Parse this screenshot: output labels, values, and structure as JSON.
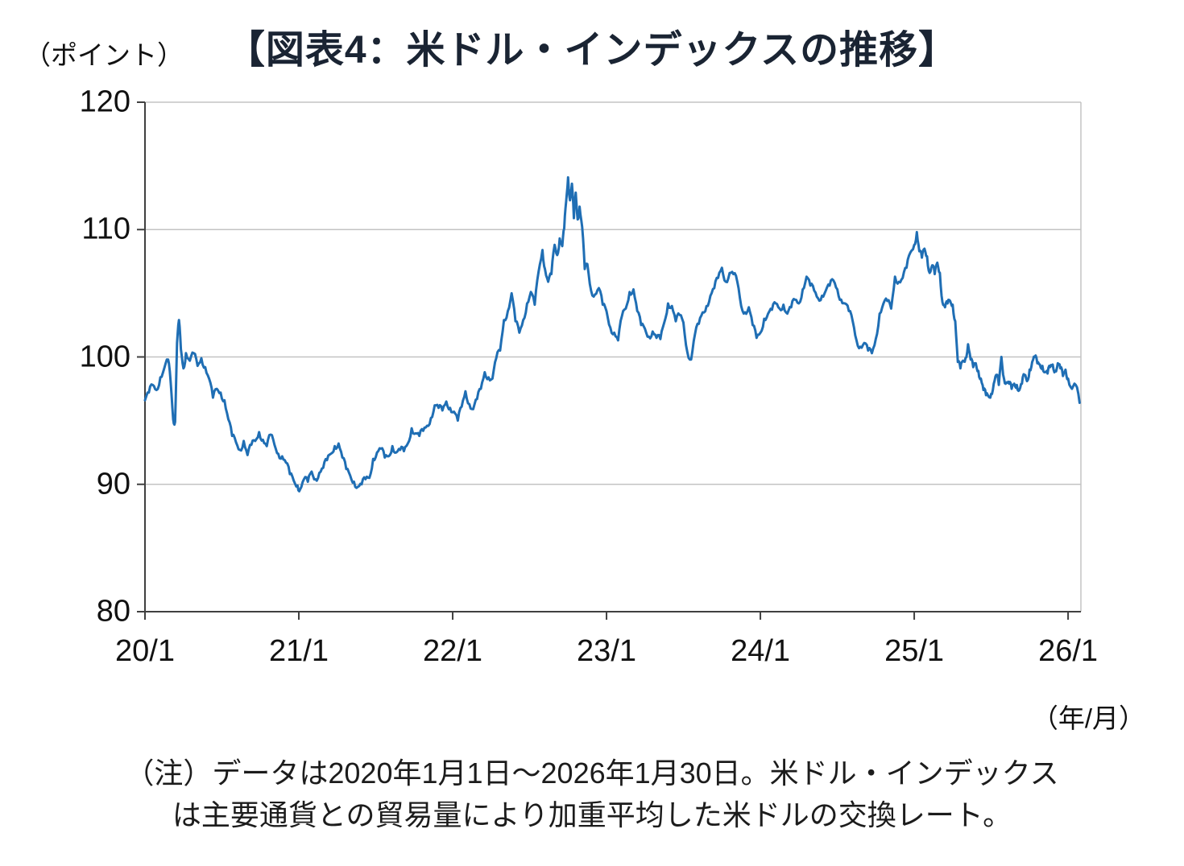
{
  "chart_data": {
    "type": "line",
    "title": "【図表4：米ドル・インデックスの推移】",
    "y_unit_label": "（ポイント）",
    "x_unit_label": "（年/月）",
    "ylim": [
      80,
      120
    ],
    "yticks": [
      80,
      90,
      100,
      110,
      120
    ],
    "xlim_months": [
      0,
      73
    ],
    "xticks": [
      {
        "m": 0,
        "label": "20/1"
      },
      {
        "m": 12,
        "label": "21/1"
      },
      {
        "m": 24,
        "label": "22/1"
      },
      {
        "m": 36,
        "label": "23/1"
      },
      {
        "m": 48,
        "label": "24/1"
      },
      {
        "m": 60,
        "label": "25/1"
      },
      {
        "m": 72,
        "label": "26/1"
      }
    ],
    "grid": "horizontal",
    "legend": "none",
    "colors": {
      "line": "#1f6eb4",
      "grid": "#c3c3c3",
      "axis": "#404040",
      "title": "#1a2433"
    },
    "series": [
      {
        "name": "米ドル・インデックス",
        "color": "#1f6eb4",
        "points": [
          [
            0,
            96.6
          ],
          [
            0.3,
            97.2
          ],
          [
            0.6,
            97.8
          ],
          [
            0.9,
            97.4
          ],
          [
            1.2,
            98.4
          ],
          [
            1.5,
            99.1
          ],
          [
            1.8,
            99.8
          ],
          [
            2.0,
            98.1
          ],
          [
            2.2,
            95.1
          ],
          [
            2.35,
            94.9
          ],
          [
            2.5,
            101.1
          ],
          [
            2.65,
            102.9
          ],
          [
            2.8,
            100.6
          ],
          [
            3.0,
            99.1
          ],
          [
            3.2,
            100.3
          ],
          [
            3.5,
            99.7
          ],
          [
            3.8,
            100.3
          ],
          [
            4.1,
            99.3
          ],
          [
            4.4,
            99.9
          ],
          [
            4.7,
            99.2
          ],
          [
            5.0,
            98.3
          ],
          [
            5.3,
            96.8
          ],
          [
            5.6,
            97.5
          ],
          [
            5.9,
            97.2
          ],
          [
            6.2,
            96.6
          ],
          [
            6.5,
            95.1
          ],
          [
            6.8,
            93.8
          ],
          [
            7.1,
            93.3
          ],
          [
            7.4,
            92.7
          ],
          [
            7.7,
            93.4
          ],
          [
            8.0,
            92.3
          ],
          [
            8.3,
            93.1
          ],
          [
            8.6,
            93.4
          ],
          [
            8.9,
            94.1
          ],
          [
            9.2,
            93.5
          ],
          [
            9.5,
            93.0
          ],
          [
            9.8,
            93.9
          ],
          [
            10.1,
            93.1
          ],
          [
            10.4,
            92.4
          ],
          [
            10.7,
            92.2
          ],
          [
            11.0,
            91.7
          ],
          [
            11.3,
            90.8
          ],
          [
            11.6,
            90.3
          ],
          [
            11.9,
            89.9
          ],
          [
            12.1,
            89.6
          ],
          [
            12.4,
            90.4
          ],
          [
            12.7,
            90.2
          ],
          [
            13.0,
            91.0
          ],
          [
            13.3,
            90.4
          ],
          [
            13.6,
            90.9
          ],
          [
            13.9,
            91.3
          ],
          [
            14.2,
            91.9
          ],
          [
            14.5,
            92.4
          ],
          [
            14.8,
            93.0
          ],
          [
            15.1,
            93.2
          ],
          [
            15.4,
            92.1
          ],
          [
            15.7,
            91.2
          ],
          [
            16.0,
            90.7
          ],
          [
            16.3,
            90.2
          ],
          [
            16.6,
            89.8
          ],
          [
            16.9,
            90.0
          ],
          [
            17.2,
            90.4
          ],
          [
            17.5,
            90.5
          ],
          [
            17.8,
            92.0
          ],
          [
            18.1,
            92.5
          ],
          [
            18.4,
            92.8
          ],
          [
            18.7,
            92.1
          ],
          [
            19.0,
            92.2
          ],
          [
            19.3,
            93.0
          ],
          [
            19.6,
            92.5
          ],
          [
            19.9,
            92.7
          ],
          [
            20.2,
            92.6
          ],
          [
            20.5,
            93.2
          ],
          [
            20.8,
            94.4
          ],
          [
            21.1,
            94.0
          ],
          [
            21.4,
            93.8
          ],
          [
            21.7,
            94.2
          ],
          [
            22.0,
            94.6
          ],
          [
            22.3,
            95.2
          ],
          [
            22.6,
            96.2
          ],
          [
            22.9,
            96.0
          ],
          [
            23.2,
            95.8
          ],
          [
            23.5,
            96.5
          ],
          [
            23.8,
            96.0
          ],
          [
            24.1,
            95.7
          ],
          [
            24.4,
            95.0
          ],
          [
            24.7,
            96.1
          ],
          [
            25.0,
            97.3
          ],
          [
            25.3,
            96.3
          ],
          [
            25.6,
            95.9
          ],
          [
            25.9,
            96.7
          ],
          [
            26.2,
            97.5
          ],
          [
            26.5,
            98.8
          ],
          [
            26.8,
            98.4
          ],
          [
            27.1,
            98.3
          ],
          [
            27.4,
            99.9
          ],
          [
            27.7,
            100.5
          ],
          [
            28.0,
            102.9
          ],
          [
            28.3,
            103.6
          ],
          [
            28.6,
            105.0
          ],
          [
            28.9,
            102.8
          ],
          [
            29.2,
            101.9
          ],
          [
            29.5,
            102.9
          ],
          [
            29.8,
            104.2
          ],
          [
            30.1,
            105.1
          ],
          [
            30.4,
            104.1
          ],
          [
            30.7,
            106.7
          ],
          [
            31.0,
            108.4
          ],
          [
            31.2,
            106.9
          ],
          [
            31.45,
            105.9
          ],
          [
            31.7,
            106.5
          ],
          [
            31.95,
            108.8
          ],
          [
            32.15,
            108.0
          ],
          [
            32.35,
            109.3
          ],
          [
            32.55,
            108.7
          ],
          [
            32.7,
            110.1
          ],
          [
            32.85,
            112.2
          ],
          [
            33.0,
            114.1
          ],
          [
            33.15,
            112.3
          ],
          [
            33.3,
            113.6
          ],
          [
            33.45,
            110.9
          ],
          [
            33.6,
            112.9
          ],
          [
            33.75,
            110.8
          ],
          [
            33.9,
            111.8
          ],
          [
            34.1,
            110.2
          ],
          [
            34.3,
            106.9
          ],
          [
            34.5,
            107.3
          ],
          [
            34.8,
            105.2
          ],
          [
            35.1,
            104.9
          ],
          [
            35.4,
            105.4
          ],
          [
            35.7,
            104.1
          ],
          [
            36.0,
            103.6
          ],
          [
            36.3,
            102.3
          ],
          [
            36.6,
            101.9
          ],
          [
            36.9,
            101.3
          ],
          [
            37.2,
            103.2
          ],
          [
            37.5,
            103.8
          ],
          [
            37.8,
            105.1
          ],
          [
            38.1,
            105.3
          ],
          [
            38.4,
            103.6
          ],
          [
            38.7,
            102.5
          ],
          [
            39.0,
            102.2
          ],
          [
            39.3,
            101.6
          ],
          [
            39.6,
            102.0
          ],
          [
            39.9,
            101.5
          ],
          [
            40.2,
            101.4
          ],
          [
            40.5,
            102.7
          ],
          [
            40.8,
            104.2
          ],
          [
            41.1,
            104.0
          ],
          [
            41.4,
            102.8
          ],
          [
            41.7,
            103.3
          ],
          [
            42.0,
            102.7
          ],
          [
            42.3,
            100.4
          ],
          [
            42.6,
            99.8
          ],
          [
            42.9,
            101.8
          ],
          [
            43.2,
            102.6
          ],
          [
            43.5,
            103.5
          ],
          [
            43.8,
            104.0
          ],
          [
            44.1,
            104.8
          ],
          [
            44.4,
            105.4
          ],
          [
            44.7,
            106.2
          ],
          [
            45.0,
            107.0
          ],
          [
            45.3,
            105.9
          ],
          [
            45.6,
            106.6
          ],
          [
            45.9,
            106.5
          ],
          [
            46.2,
            105.9
          ],
          [
            46.5,
            104.0
          ],
          [
            46.8,
            103.5
          ],
          [
            47.1,
            103.9
          ],
          [
            47.4,
            102.5
          ],
          [
            47.7,
            101.5
          ],
          [
            48.0,
            101.9
          ],
          [
            48.3,
            103.0
          ],
          [
            48.6,
            103.4
          ],
          [
            48.9,
            103.7
          ],
          [
            49.2,
            104.2
          ],
          [
            49.5,
            103.8
          ],
          [
            49.8,
            104.1
          ],
          [
            50.1,
            103.4
          ],
          [
            50.4,
            103.9
          ],
          [
            50.7,
            104.5
          ],
          [
            51.0,
            104.2
          ],
          [
            51.3,
            105.3
          ],
          [
            51.6,
            106.3
          ],
          [
            51.9,
            105.6
          ],
          [
            52.2,
            105.2
          ],
          [
            52.5,
            104.6
          ],
          [
            52.8,
            104.8
          ],
          [
            53.1,
            105.2
          ],
          [
            53.4,
            105.6
          ],
          [
            53.7,
            106.0
          ],
          [
            54.0,
            105.3
          ],
          [
            54.3,
            104.5
          ],
          [
            54.6,
            104.2
          ],
          [
            54.9,
            103.6
          ],
          [
            55.2,
            102.8
          ],
          [
            55.5,
            101.3
          ],
          [
            55.8,
            100.8
          ],
          [
            56.1,
            101.1
          ],
          [
            56.4,
            100.5
          ],
          [
            56.7,
            100.3
          ],
          [
            57.0,
            101.4
          ],
          [
            57.3,
            103.4
          ],
          [
            57.6,
            104.2
          ],
          [
            57.9,
            104.4
          ],
          [
            58.2,
            103.8
          ],
          [
            58.5,
            106.3
          ],
          [
            58.8,
            105.9
          ],
          [
            59.1,
            106.2
          ],
          [
            59.4,
            107.0
          ],
          [
            59.7,
            108.2
          ],
          [
            60.0,
            108.8
          ],
          [
            60.2,
            109.8
          ],
          [
            60.4,
            108.3
          ],
          [
            60.6,
            107.8
          ],
          [
            60.8,
            108.5
          ],
          [
            61.0,
            107.9
          ],
          [
            61.2,
            106.6
          ],
          [
            61.4,
            107.2
          ],
          [
            61.6,
            106.5
          ],
          [
            61.8,
            107.4
          ],
          [
            62.0,
            106.6
          ],
          [
            62.2,
            104.3
          ],
          [
            62.4,
            103.9
          ],
          [
            62.6,
            104.2
          ],
          [
            62.8,
            104.4
          ],
          [
            63.0,
            104.1
          ],
          [
            63.2,
            102.8
          ],
          [
            63.4,
            99.6
          ],
          [
            63.6,
            99.1
          ],
          [
            63.8,
            99.7
          ],
          [
            64.0,
            99.9
          ],
          [
            64.2,
            101.0
          ],
          [
            64.4,
            99.8
          ],
          [
            64.6,
            99.2
          ],
          [
            64.8,
            99.5
          ],
          [
            65.0,
            98.9
          ],
          [
            65.2,
            98.3
          ],
          [
            65.4,
            97.4
          ],
          [
            65.6,
            97.0
          ],
          [
            65.8,
            96.9
          ],
          [
            66.0,
            97.1
          ],
          [
            66.2,
            97.9
          ],
          [
            66.4,
            98.6
          ],
          [
            66.6,
            97.8
          ],
          [
            66.8,
            100.0
          ],
          [
            67.0,
            98.3
          ],
          [
            67.2,
            98.0
          ],
          [
            67.4,
            97.9
          ],
          [
            67.6,
            97.5
          ],
          [
            67.8,
            97.9
          ],
          [
            68.0,
            97.8
          ],
          [
            68.2,
            97.4
          ],
          [
            68.4,
            97.9
          ],
          [
            68.6,
            98.6
          ],
          [
            68.8,
            98.1
          ],
          [
            69.0,
            99.0
          ],
          [
            69.2,
            99.6
          ],
          [
            69.4,
            100.0
          ],
          [
            69.6,
            99.5
          ],
          [
            69.8,
            99.4
          ],
          [
            70.0,
            99.3
          ],
          [
            70.2,
            98.8
          ],
          [
            70.4,
            98.7
          ],
          [
            70.6,
            99.2
          ],
          [
            70.8,
            99.4
          ],
          [
            71.0,
            98.9
          ],
          [
            71.2,
            99.5
          ],
          [
            71.4,
            99.1
          ],
          [
            71.6,
            98.5
          ],
          [
            71.8,
            99.0
          ],
          [
            72.0,
            98.3
          ],
          [
            72.3,
            97.5
          ],
          [
            72.6,
            97.8
          ],
          [
            72.9,
            96.4
          ]
        ]
      }
    ],
    "note_lines": [
      "（注）データは2020年1月1日～2026年1月30日。米ドル・インデックス",
      "は主要通貨との貿易量により加重平均した米ドルの交換レート。"
    ]
  }
}
